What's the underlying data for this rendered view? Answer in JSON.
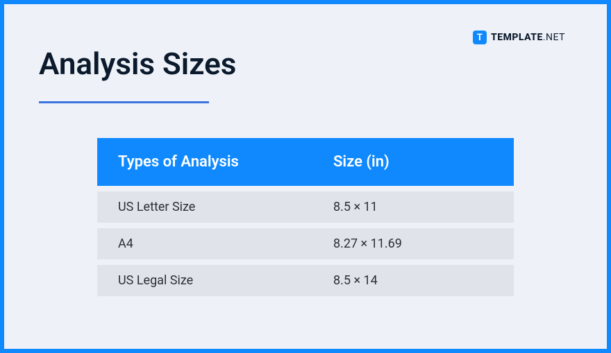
{
  "frame": {
    "border_color": "#1089ff",
    "background_color": "#eef2f8"
  },
  "logo": {
    "icon_letter": "T",
    "text_main": "TEMPLATE",
    "text_suffix": ".NET",
    "icon_bg": "#1089ff",
    "text_color": "#0b1a2c"
  },
  "title": {
    "text": "Analysis Sizes",
    "fontsize": 44,
    "color": "#0b1a2c",
    "underline_color": "#3a73e0",
    "underline_width": 245
  },
  "table": {
    "type": "table",
    "header_bg": "#1089ff",
    "header_text_color": "#ffffff",
    "row_bg": "#e0e4ea",
    "row_text_color": "#2a2f36",
    "header_fontsize": 22,
    "row_fontsize": 18,
    "columns": [
      "Types of Analysis",
      "Size (in)"
    ],
    "rows": [
      [
        "US Letter Size",
        "8.5 × 11"
      ],
      [
        "A4",
        "8.27 × 11.69"
      ],
      [
        "US Legal Size",
        "8.5 × 14"
      ]
    ]
  }
}
